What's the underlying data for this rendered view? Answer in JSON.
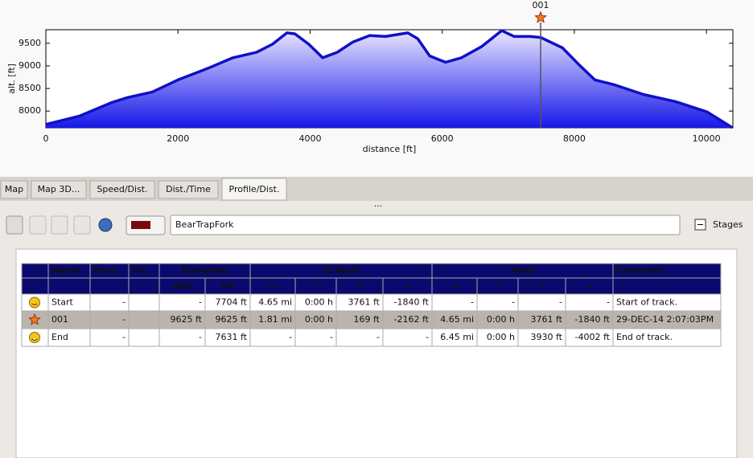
{
  "chart_data": {
    "type": "line",
    "xlabel": "distance [ft]",
    "ylabel": "alt. [ft]",
    "x": [
      0,
      510,
      1000,
      1240,
      1610,
      2000,
      2460,
      2830,
      3190,
      3430,
      3650,
      3770,
      3980,
      4190,
      4410,
      4650,
      4900,
      5140,
      5480,
      5630,
      5810,
      6050,
      6290,
      6600,
      6900,
      7090,
      7330,
      7490,
      7820,
      8060,
      8310,
      8610,
      9040,
      9530,
      10010,
      10390
    ],
    "series": [
      {
        "color": "#1010c8",
        "values": [
          7704,
          7890,
          8190,
          8300,
          8420,
          8690,
          8950,
          9180,
          9300,
          9480,
          9730,
          9710,
          9480,
          9180,
          9300,
          9530,
          9670,
          9650,
          9730,
          9600,
          9220,
          9080,
          9180,
          9430,
          9780,
          9650,
          9650,
          9630,
          9400,
          9040,
          8690,
          8580,
          8370,
          8210,
          7980,
          7631
        ]
      }
    ],
    "xlim": [
      0,
      10400
    ],
    "ylim": [
      7630,
      9800
    ],
    "xticks": [
      0,
      2000,
      4000,
      6000,
      8000,
      10000
    ],
    "yticks": [
      8000,
      8500,
      9000,
      9500
    ],
    "marker": {
      "label": "001",
      "x": 7490
    }
  },
  "tabs": [
    "Map",
    "Map 3D...",
    "Speed/Dist.",
    "Dist./Time",
    "Profile/Dist."
  ],
  "toolbar": {
    "track_name": "BearTrapFork",
    "stages": "Stages"
  },
  "table": {
    "header": [
      "Name",
      "Prox.",
      "Pic.",
      "Elevation",
      "To Next",
      "Total",
      "Comment"
    ],
    "subheader": [
      "wpt",
      "trk",
      "↦",
      "▯",
      "↗",
      "↘",
      "↦",
      "▯",
      "↗",
      "↘"
    ],
    "rows": [
      [
        "Start",
        "-",
        "-",
        "7704 ft",
        "4.65 mi",
        "0:00 h",
        "3761 ft",
        "-1840 ft",
        "-",
        "-",
        "-",
        "-",
        "Start of track."
      ],
      [
        "001",
        "-",
        "9625 ft",
        "9625 ft",
        "1.81 mi",
        "0:00 h",
        "169 ft",
        "-2162 ft",
        "4.65 mi",
        "0:00 h",
        "3761 ft",
        "-1840 ft",
        "29-DEC-14 2:07:03PM"
      ],
      [
        "End",
        "-",
        "-",
        "7631 ft",
        "-",
        "-",
        "-",
        "-",
        "6.45 mi",
        "0:00 h",
        "3930 ft",
        "-4002 ft",
        "End of track."
      ]
    ]
  }
}
